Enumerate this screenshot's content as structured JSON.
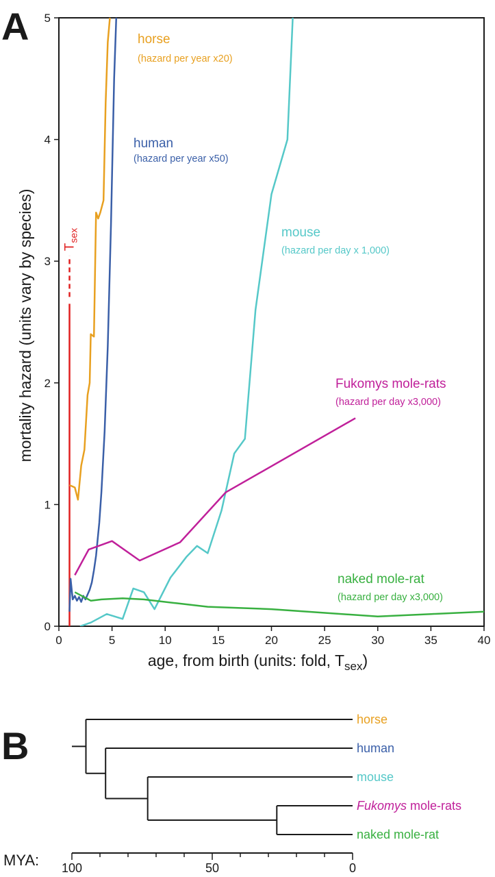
{
  "panel_a_label": "A",
  "panel_b_label": "B",
  "chart_data": [
    {
      "type": "line",
      "xlabel_main": "age, from birth (units: fold, T",
      "xlabel_sub": "sex",
      "xlabel_close": ")",
      "ylabel": "mortality hazard (units vary by species)",
      "xlim": [
        0,
        40
      ],
      "ylim": [
        0,
        5
      ],
      "x_ticks": [
        "0",
        "5",
        "10",
        "15",
        "20",
        "25",
        "30",
        "35",
        "40"
      ],
      "y_ticks": [
        "0",
        "1",
        "2",
        "3",
        "4",
        "5"
      ],
      "tsex_marker": {
        "main": "T",
        "sub": "sex",
        "x": 1,
        "solid_top": 2.65,
        "dashed_top": 3.0,
        "color": "#e02020"
      },
      "series": [
        {
          "id": "horse",
          "name": "horse",
          "note": "(hazard per year x20)",
          "color": "#e8a020",
          "x": [
            1,
            1.5,
            1.8,
            2.1,
            2.4,
            2.7,
            2.9,
            3.0,
            3.3,
            3.5,
            3.7,
            3.9,
            4.2,
            4.4,
            4.6,
            4.8
          ],
          "y": [
            1.16,
            1.14,
            1.04,
            1.32,
            1.45,
            1.9,
            2.0,
            2.4,
            2.38,
            3.4,
            3.35,
            3.4,
            3.5,
            4.3,
            4.8,
            5.0
          ]
        },
        {
          "id": "human",
          "name": "human",
          "note": "(hazard per year x50)",
          "color": "#3a5fa8",
          "x": [
            1.0,
            1.1,
            1.3,
            1.5,
            1.7,
            1.9,
            2.1,
            2.3,
            2.5,
            2.7,
            2.9,
            3.1,
            3.3,
            3.5,
            3.8,
            4.0,
            4.3,
            4.6,
            4.9,
            5.2,
            5.4
          ],
          "y": [
            0.12,
            0.39,
            0.22,
            0.25,
            0.21,
            0.24,
            0.2,
            0.25,
            0.22,
            0.26,
            0.3,
            0.36,
            0.46,
            0.58,
            0.85,
            1.1,
            1.6,
            2.3,
            3.3,
            4.5,
            5.0
          ]
        },
        {
          "id": "mouse",
          "name": "mouse",
          "note": "(hazard per day x 1,000)",
          "color": "#55c8c8",
          "x": [
            2.0,
            3.0,
            4.5,
            6.0,
            7.0,
            8.0,
            9.0,
            10.5,
            12.0,
            13.0,
            14.0,
            15.3,
            16.5,
            17.5,
            18.5,
            20.0,
            21.5,
            22.0
          ],
          "y": [
            0.0,
            0.03,
            0.1,
            0.06,
            0.31,
            0.28,
            0.14,
            0.4,
            0.57,
            0.66,
            0.6,
            0.95,
            1.42,
            1.54,
            2.6,
            3.55,
            4.0,
            5.0
          ]
        },
        {
          "id": "fukomys",
          "name": "Fukomys mole-rats",
          "note": "(hazard per day x3,000)",
          "color": "#c0209a",
          "x": [
            1.5,
            2.8,
            5.0,
            7.6,
            11.4,
            15.7,
            27.9
          ],
          "y": [
            0.42,
            0.63,
            0.7,
            0.54,
            0.69,
            1.1,
            1.71
          ]
        },
        {
          "id": "nakedmr",
          "name": "naked mole-rat",
          "note": "(hazard per day x3,000)",
          "color": "#38b040",
          "x": [
            1.5,
            3.0,
            4.0,
            6.0,
            8.0,
            11.0,
            14.0,
            20.0,
            30.0,
            35.0,
            40.0
          ],
          "y": [
            0.28,
            0.21,
            0.22,
            0.23,
            0.22,
            0.19,
            0.16,
            0.14,
            0.08,
            0.1,
            0.12
          ]
        }
      ]
    },
    {
      "type": "tree",
      "axis_label": "MYA:",
      "x_ticks": [
        100,
        50,
        0
      ],
      "x_tick_labels": [
        "100",
        "50",
        "0"
      ],
      "minor_tick_step": 10,
      "xlim": [
        100,
        0
      ],
      "leaves": [
        {
          "id": "horse",
          "name": "horse",
          "color": "#e8a020"
        },
        {
          "id": "human",
          "name": "human",
          "color": "#3a5fa8"
        },
        {
          "id": "mouse",
          "name": "mouse",
          "color": "#55c8c8"
        },
        {
          "id": "fukomys",
          "name_italic": "Fukomys",
          "name_rest": " mole-rats",
          "color": "#c0209a"
        },
        {
          "id": "nakedmr",
          "name": "naked mole-rat",
          "color": "#38b040"
        }
      ],
      "nodes": [
        {
          "id": "afr",
          "age": 27,
          "children": [
            "fukomys",
            "nakedmr"
          ]
        },
        {
          "id": "glires",
          "age": 73,
          "children": [
            "mouse",
            "afr"
          ]
        },
        {
          "id": "euarchon",
          "age": 88,
          "children": [
            "human",
            "glires"
          ]
        },
        {
          "id": "root",
          "age": 95,
          "children": [
            "horse",
            "euarchon"
          ]
        }
      ],
      "root_stem_age": 100
    }
  ]
}
